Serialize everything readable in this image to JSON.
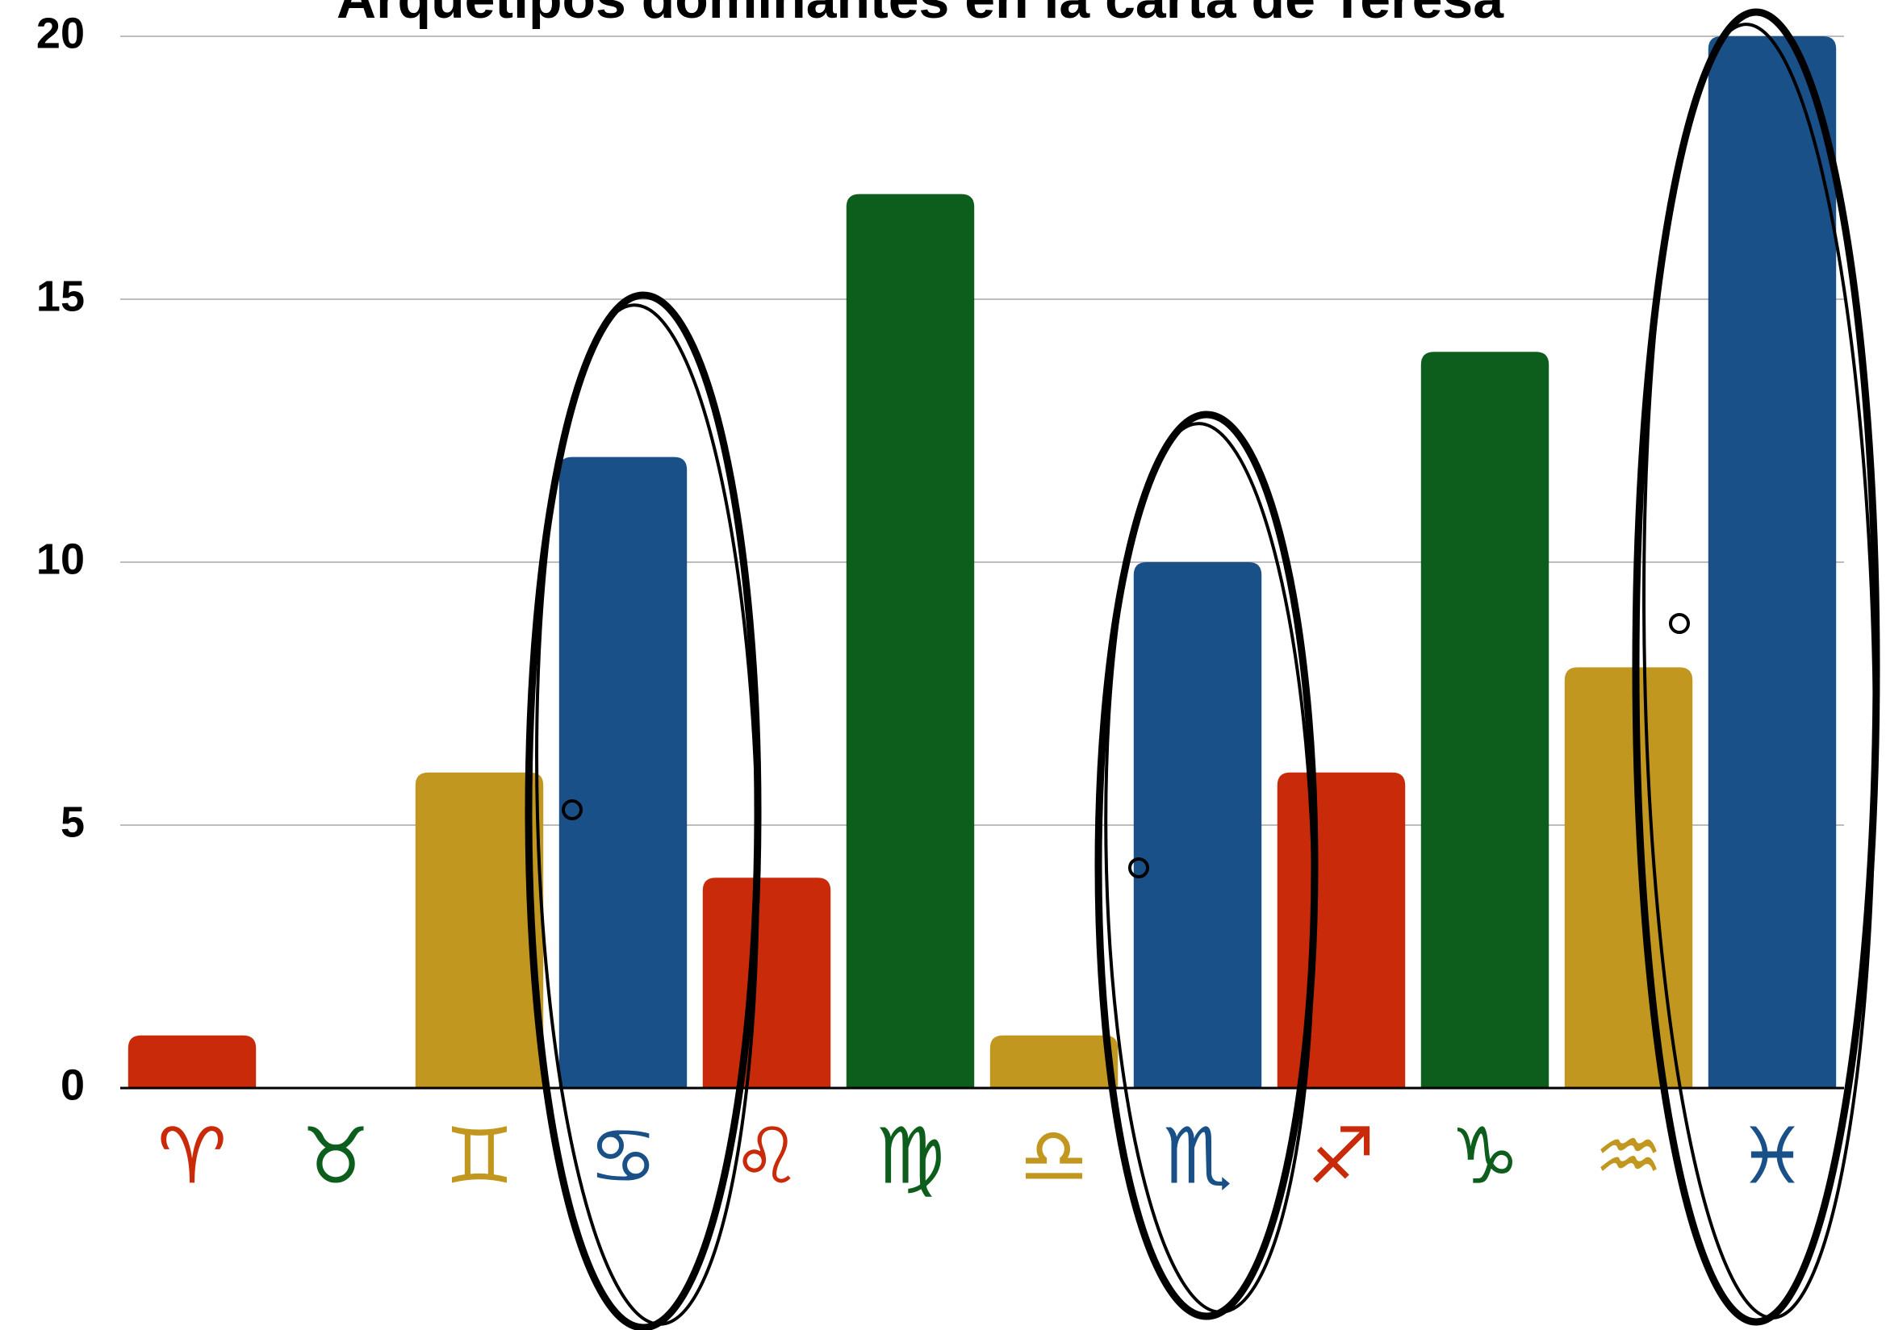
{
  "chart_data": {
    "type": "bar",
    "title": "Arquetipos dominantes en la carta de Teresa",
    "categories": [
      "♈",
      "♉",
      "♊",
      "♋",
      "♌",
      "♍",
      "♎",
      "♏",
      "♐",
      "♑",
      "♒",
      "♓"
    ],
    "values": [
      1,
      0,
      6,
      12,
      4,
      17,
      1,
      10,
      6,
      14,
      8,
      20
    ],
    "colors": [
      "#c92a09",
      "#0d5e1c",
      "#c29720",
      "#1a5088",
      "#c92a09",
      "#0d5e1c",
      "#c29720",
      "#1a5088",
      "#c92a09",
      "#0d5e1c",
      "#c29720",
      "#1a5088"
    ],
    "ylim": [
      0,
      20
    ],
    "yticks": [
      0,
      5,
      10,
      15,
      20
    ],
    "grid": true
  }
}
